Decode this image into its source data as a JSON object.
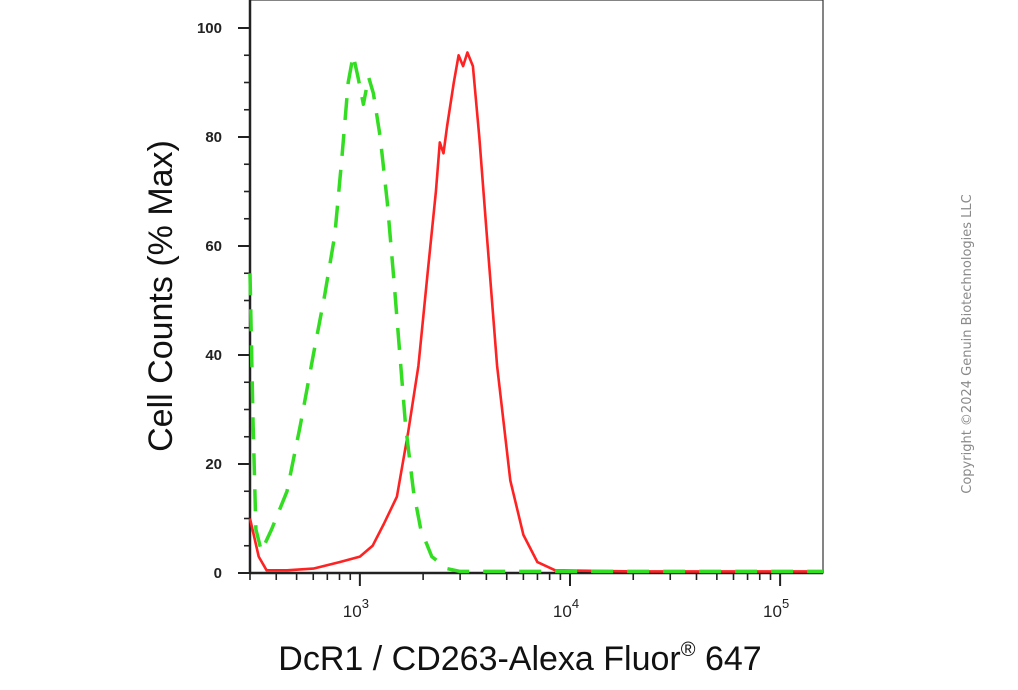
{
  "chart_data": {
    "type": "line",
    "title": "",
    "xlabel": "DcR1 / CD263-Alexa Fluor",
    "xlabel_sup": "®",
    "xlabel_suffix": " 647",
    "ylabel": "Cell Counts (% Max)",
    "x_scale": "log",
    "xlim": [
      300,
      160000
    ],
    "ylim": [
      0,
      100
    ],
    "y_ticks": [
      "0",
      "20",
      "40",
      "60",
      "80",
      "100"
    ],
    "x_ticks": [
      {
        "base": "10",
        "exp": "3",
        "value": 1000
      },
      {
        "base": "10",
        "exp": "4",
        "value": 10000
      },
      {
        "base": "10",
        "exp": "5",
        "value": 100000
      }
    ],
    "grid": false,
    "legend": "none",
    "series": [
      {
        "color": "#ff2222",
        "style": "solid",
        "points": [
          [
            300,
            10
          ],
          [
            330,
            3
          ],
          [
            360,
            0.5
          ],
          [
            450,
            0.5
          ],
          [
            600,
            0.8
          ],
          [
            800,
            2
          ],
          [
            1000,
            3
          ],
          [
            1150,
            5
          ],
          [
            1300,
            9
          ],
          [
            1500,
            14
          ],
          [
            1700,
            26
          ],
          [
            1900,
            38
          ],
          [
            2100,
            55
          ],
          [
            2300,
            70
          ],
          [
            2400,
            79
          ],
          [
            2500,
            77
          ],
          [
            2600,
            82
          ],
          [
            2800,
            90
          ],
          [
            2950,
            95
          ],
          [
            3100,
            93
          ],
          [
            3250,
            95.5
          ],
          [
            3450,
            93
          ],
          [
            3700,
            80
          ],
          [
            4000,
            63
          ],
          [
            4500,
            38
          ],
          [
            5200,
            17
          ],
          [
            6000,
            7
          ],
          [
            7000,
            2
          ],
          [
            8500,
            0.5
          ],
          [
            20000,
            0.3
          ],
          [
            160000,
            0.3
          ]
        ]
      },
      {
        "color": "#33dd22",
        "style": "dashed",
        "points": [
          [
            300,
            55
          ],
          [
            310,
            28
          ],
          [
            320,
            8
          ],
          [
            340,
            4
          ],
          [
            380,
            8
          ],
          [
            450,
            15
          ],
          [
            520,
            27
          ],
          [
            600,
            40
          ],
          [
            680,
            51
          ],
          [
            760,
            62
          ],
          [
            820,
            76
          ],
          [
            880,
            90
          ],
          [
            930,
            95
          ],
          [
            980,
            91
          ],
          [
            1040,
            86
          ],
          [
            1100,
            91
          ],
          [
            1160,
            88
          ],
          [
            1250,
            80
          ],
          [
            1350,
            68
          ],
          [
            1450,
            54
          ],
          [
            1550,
            40
          ],
          [
            1650,
            27
          ],
          [
            1800,
            15
          ],
          [
            1950,
            8
          ],
          [
            2200,
            3
          ],
          [
            2600,
            0.8
          ],
          [
            3000,
            0.3
          ],
          [
            160000,
            0.3
          ]
        ]
      }
    ]
  },
  "copyright": "Copyright ©2024 Genuin Biotechnologies LLC"
}
